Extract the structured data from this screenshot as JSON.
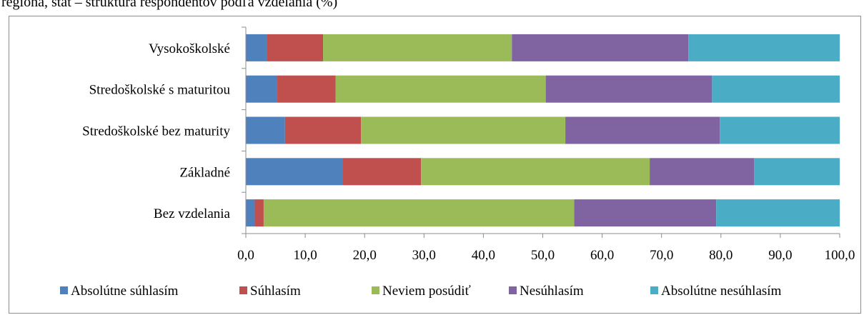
{
  "caption": "regióna, štát – štruktúra respondentov podľa vzdelania (%)",
  "chart_data": {
    "type": "bar",
    "orientation": "horizontal",
    "stacked": true,
    "categories": [
      "Vysokoškolské",
      "Stredoškolské s maturitou",
      "Stredoškolské bez maturity",
      "Základné",
      "Bez vzdelania"
    ],
    "series": [
      {
        "name": "Absolútne súhlasím",
        "color": "#4f81bd",
        "values": [
          3.5,
          5.3,
          6.6,
          16.3,
          1.5
        ]
      },
      {
        "name": "Súhlasím",
        "color": "#c0504d",
        "values": [
          9.5,
          9.8,
          12.8,
          13.2,
          1.5
        ]
      },
      {
        "name": "Neviem posúdiť",
        "color": "#9bbb59",
        "values": [
          31.8,
          35.4,
          34.4,
          38.5,
          52.3
        ]
      },
      {
        "name": "Nesúhlasím",
        "color": "#8064a2",
        "values": [
          29.7,
          28.0,
          26.0,
          17.6,
          23.9
        ]
      },
      {
        "name": "Absolútne nesúhlasím",
        "color": "#4bacc6",
        "values": [
          25.5,
          21.5,
          20.2,
          14.4,
          20.8
        ]
      }
    ],
    "xlim": [
      0,
      100
    ],
    "xticks": [
      "0,0",
      "10,0",
      "20,0",
      "30,0",
      "40,0",
      "50,0",
      "60,0",
      "70,0",
      "80,0",
      "90,0",
      "100,0"
    ],
    "grid": false,
    "legend": "bottom"
  }
}
